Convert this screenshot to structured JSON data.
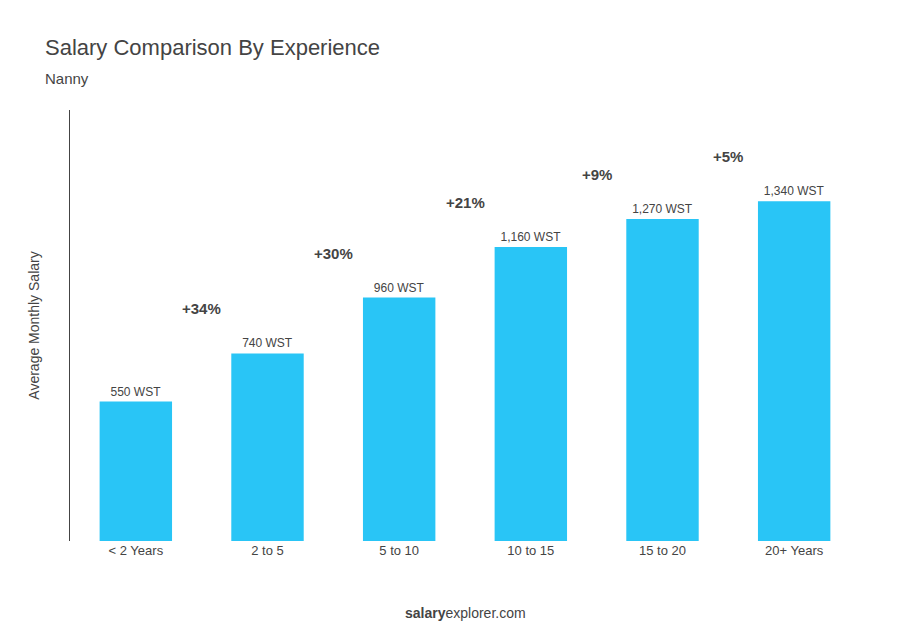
{
  "chart_data": {
    "type": "bar",
    "title": "Salary Comparison By Experience",
    "subtitle": "Nanny",
    "ylabel": "Average Monthly Salary",
    "categories": [
      "< 2 Years",
      "2 to 5",
      "5 to 10",
      "10 to 15",
      "15 to 20",
      "20+ Years"
    ],
    "values": [
      550,
      740,
      960,
      1160,
      1270,
      1340
    ],
    "value_labels": [
      "550 WST",
      "740 WST",
      "960 WST",
      "1,160 WST",
      "1,270 WST",
      "1,340 WST"
    ],
    "data_labels": true,
    "color": "#29c5f6",
    "annotations": [
      "+34%",
      "+30%",
      "+21%",
      "+9%",
      "+5%"
    ],
    "watermark": [
      "salary",
      "explorer.com"
    ],
    "ylim": [
      0,
      1700
    ],
    "yticks": [],
    "tick_labels": "x",
    "grid": false
  }
}
